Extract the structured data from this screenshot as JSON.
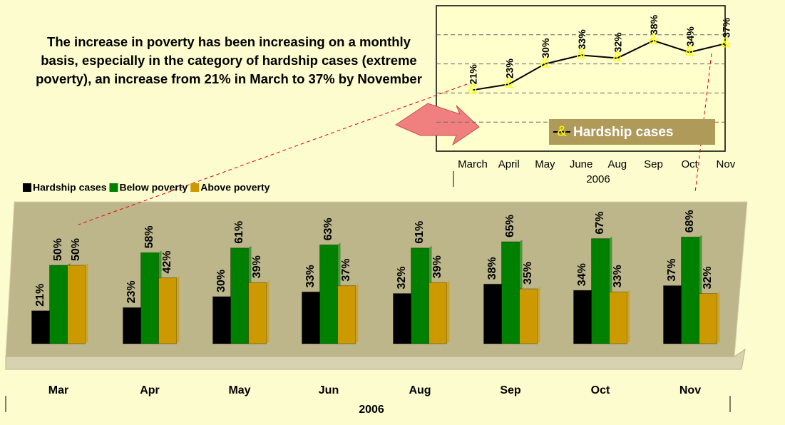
{
  "annotation": "The increase in poverty has been increasing on a monthly basis, especially in the category of hardship cases (extreme poverty), an increase from 21% in March to 37% by November",
  "chart_data": [
    {
      "type": "line",
      "categories": [
        "March",
        "April",
        "May",
        "June",
        "Aug",
        "Sep",
        "Oct",
        "Nov"
      ],
      "x_label": "2006",
      "series": [
        {
          "name": "Hardship cases",
          "color": "#000000",
          "marker_color": "#ffff00",
          "values": [
            21,
            23,
            30,
            33,
            32,
            38,
            34,
            37
          ],
          "value_labels": [
            "21%",
            "23%",
            "30%",
            "33%",
            "32%",
            "38%",
            "34%",
            "37%"
          ]
        }
      ],
      "ylim": [
        0,
        50
      ],
      "yticks": [
        10,
        20,
        30,
        40
      ],
      "grid": true,
      "legend": "lower-right"
    },
    {
      "type": "bar",
      "categories": [
        "Mar",
        "Apr",
        "May",
        "Jun",
        "Aug",
        "Sep",
        "Oct",
        "Nov"
      ],
      "x_label": "2006",
      "series": [
        {
          "name": "Hardship cases",
          "color": "#000000",
          "values": [
            21,
            23,
            30,
            33,
            32,
            38,
            34,
            37
          ],
          "value_labels": [
            "21%",
            "23%",
            "30%",
            "33%",
            "32%",
            "38%",
            "34%",
            "37%"
          ]
        },
        {
          "name": "Below poverty",
          "color": "#008000",
          "values": [
            50,
            58,
            61,
            63,
            61,
            65,
            67,
            68
          ],
          "value_labels": [
            "50%",
            "58%",
            "61%",
            "63%",
            "61%",
            "65%",
            "67%",
            "68%"
          ]
        },
        {
          "name": "Above poverty",
          "color": "#cc9900",
          "values": [
            50,
            42,
            39,
            37,
            39,
            35,
            33,
            32
          ],
          "value_labels": [
            "50%",
            "42%",
            "39%",
            "37%",
            "39%",
            "35%",
            "33%",
            "32%"
          ]
        }
      ],
      "ylim": [
        0,
        90
      ],
      "legend": "top-left"
    }
  ]
}
